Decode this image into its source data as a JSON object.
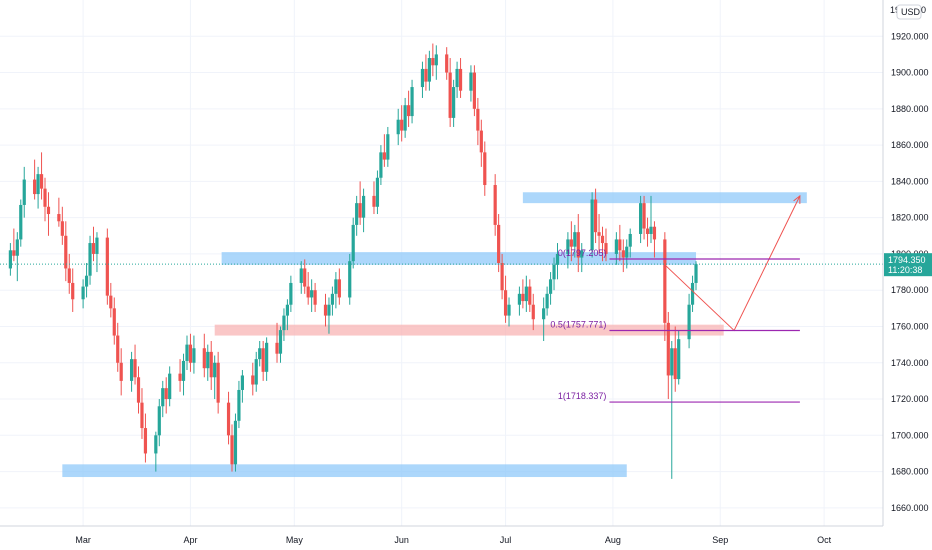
{
  "chart_data": {
    "type": "candlestick",
    "currency": "USD",
    "price_axis": {
      "ticks": [
        1660,
        1680,
        1700,
        1720,
        1740,
        1760,
        1780,
        1800,
        1820,
        1840,
        1860,
        1880,
        1900,
        1920
      ],
      "tick_labels": [
        "1660.000",
        "1680.000",
        "1700.000",
        "1720.000",
        "1740.000",
        "1760.000",
        "1780.000",
        "1800.000",
        "1820.000",
        "1840.000",
        "1860.000",
        "1880.000",
        "1900.000",
        "1920.000"
      ],
      "top_label": "19",
      "top_label_suffix": "0",
      "ylim": [
        1650,
        1940
      ]
    },
    "time_axis": {
      "labels": [
        "Mar",
        "Apr",
        "May",
        "Jun",
        "Jul",
        "Aug",
        "Sep",
        "Oct"
      ],
      "label_days": [
        1,
        32,
        62,
        93,
        123,
        154,
        185,
        215
      ],
      "xlim": [
        -23,
        232
      ]
    },
    "last_price": {
      "value": 1794.35,
      "value_label": "1794.350",
      "countdown": "11:20:38",
      "color": "#26a69a"
    },
    "colors": {
      "up": "#26a69a",
      "down": "#ef5350"
    },
    "ohlc": [
      [
        1792,
        1806,
        1788,
        1802
      ],
      [
        1802,
        1814,
        1796,
        1799
      ],
      [
        1799,
        1812,
        1785,
        1808
      ],
      [
        1808,
        1830,
        1804,
        1827
      ],
      [
        1827,
        1848,
        1820,
        1841
      ],
      [
        1841,
        1852,
        1830,
        1833
      ],
      [
        1833,
        1848,
        1825,
        1844
      ],
      [
        1844,
        1856,
        1830,
        1836
      ],
      [
        1836,
        1842,
        1818,
        1826
      ],
      [
        1826,
        1834,
        1810,
        1822
      ],
      [
        1822,
        1831,
        1815,
        1818
      ],
      [
        1818,
        1826,
        1805,
        1810
      ],
      [
        1810,
        1818,
        1785,
        1792
      ],
      [
        1792,
        1800,
        1778,
        1784
      ],
      [
        1784,
        1792,
        1768,
        1775
      ],
      [
        1775,
        1786,
        1770,
        1782
      ],
      [
        1782,
        1795,
        1776,
        1788
      ],
      [
        1788,
        1810,
        1783,
        1806
      ],
      [
        1806,
        1815,
        1796,
        1800
      ],
      [
        1800,
        1812,
        1790,
        1809
      ],
      [
        1809,
        1814,
        1772,
        1777
      ],
      [
        1777,
        1784,
        1765,
        1770
      ],
      [
        1770,
        1776,
        1750,
        1755
      ],
      [
        1755,
        1762,
        1735,
        1740
      ],
      [
        1740,
        1748,
        1722,
        1730
      ],
      [
        1730,
        1746,
        1724,
        1742
      ],
      [
        1742,
        1750,
        1728,
        1732
      ],
      [
        1732,
        1738,
        1712,
        1718
      ],
      [
        1718,
        1726,
        1698,
        1704
      ],
      [
        1704,
        1712,
        1685,
        1690
      ],
      [
        1690,
        1702,
        1680,
        1700
      ],
      [
        1700,
        1720,
        1694,
        1716
      ],
      [
        1716,
        1730,
        1710,
        1726
      ],
      [
        1726,
        1732,
        1712,
        1720
      ],
      [
        1720,
        1738,
        1716,
        1734
      ],
      [
        1734,
        1742,
        1724,
        1730
      ],
      [
        1730,
        1745,
        1722,
        1741
      ],
      [
        1741,
        1755,
        1736,
        1750
      ],
      [
        1750,
        1756,
        1735,
        1740
      ],
      [
        1740,
        1755,
        1734,
        1748
      ],
      [
        1748,
        1756,
        1732,
        1737
      ],
      [
        1737,
        1750,
        1730,
        1746
      ],
      [
        1746,
        1752,
        1725,
        1732
      ],
      [
        1732,
        1744,
        1720,
        1740
      ],
      [
        1740,
        1746,
        1712,
        1718
      ],
      [
        1718,
        1724,
        1695,
        1700
      ],
      [
        1700,
        1706,
        1680,
        1684
      ],
      [
        1684,
        1712,
        1680,
        1708
      ],
      [
        1708,
        1730,
        1704,
        1725
      ],
      [
        1725,
        1736,
        1718,
        1733
      ],
      [
        1733,
        1740,
        1722,
        1728
      ],
      [
        1728,
        1746,
        1724,
        1742
      ],
      [
        1742,
        1752,
        1738,
        1748
      ],
      [
        1748,
        1752,
        1730,
        1735
      ],
      [
        1735,
        1754,
        1730,
        1751
      ],
      [
        1751,
        1762,
        1740,
        1745
      ],
      [
        1745,
        1760,
        1740,
        1758
      ],
      [
        1758,
        1770,
        1752,
        1766
      ],
      [
        1766,
        1775,
        1758,
        1772
      ],
      [
        1772,
        1788,
        1768,
        1784
      ],
      [
        1784,
        1796,
        1778,
        1792
      ],
      [
        1792,
        1797,
        1778,
        1782
      ],
      [
        1782,
        1790,
        1772,
        1776
      ],
      [
        1776,
        1786,
        1768,
        1780
      ],
      [
        1780,
        1784,
        1768,
        1772
      ],
      [
        1772,
        1778,
        1760,
        1766
      ],
      [
        1766,
        1776,
        1756,
        1772
      ],
      [
        1772,
        1782,
        1766,
        1778
      ],
      [
        1778,
        1790,
        1770,
        1786
      ],
      [
        1786,
        1792,
        1772,
        1776
      ],
      [
        1776,
        1800,
        1772,
        1796
      ],
      [
        1796,
        1820,
        1792,
        1816
      ],
      [
        1816,
        1832,
        1810,
        1828
      ],
      [
        1828,
        1840,
        1816,
        1820
      ],
      [
        1820,
        1836,
        1812,
        1832
      ],
      [
        1832,
        1840,
        1822,
        1826
      ],
      [
        1826,
        1846,
        1822,
        1842
      ],
      [
        1842,
        1860,
        1838,
        1856
      ],
      [
        1856,
        1866,
        1848,
        1852
      ],
      [
        1852,
        1870,
        1848,
        1866
      ],
      [
        1866,
        1880,
        1860,
        1874
      ],
      [
        1874,
        1882,
        1862,
        1868
      ],
      [
        1868,
        1886,
        1864,
        1882
      ],
      [
        1882,
        1890,
        1870,
        1876
      ],
      [
        1876,
        1896,
        1872,
        1892
      ],
      [
        1892,
        1906,
        1886,
        1902
      ],
      [
        1902,
        1910,
        1890,
        1895
      ],
      [
        1895,
        1912,
        1890,
        1908
      ],
      [
        1908,
        1916,
        1898,
        1904
      ],
      [
        1904,
        1915,
        1896,
        1910
      ],
      [
        1910,
        1914,
        1896,
        1900
      ],
      [
        1900,
        1908,
        1870,
        1875
      ],
      [
        1875,
        1896,
        1870,
        1892
      ],
      [
        1892,
        1906,
        1886,
        1902
      ],
      [
        1902,
        1908,
        1886,
        1890
      ],
      [
        1890,
        1904,
        1884,
        1900
      ],
      [
        1900,
        1904,
        1876,
        1880
      ],
      [
        1880,
        1886,
        1860,
        1868
      ],
      [
        1868,
        1874,
        1848,
        1856
      ],
      [
        1856,
        1862,
        1832,
        1838
      ],
      [
        1838,
        1844,
        1810,
        1816
      ],
      [
        1816,
        1822,
        1790,
        1795
      ],
      [
        1795,
        1800,
        1775,
        1780
      ],
      [
        1780,
        1788,
        1762,
        1766
      ],
      [
        1766,
        1776,
        1760,
        1772
      ],
      [
        1772,
        1782,
        1766,
        1778
      ],
      [
        1778,
        1786,
        1770,
        1774
      ],
      [
        1774,
        1788,
        1768,
        1782
      ],
      [
        1782,
        1786,
        1768,
        1772
      ],
      [
        1772,
        1778,
        1758,
        1764
      ],
      [
        1764,
        1776,
        1752,
        1770
      ],
      [
        1770,
        1782,
        1766,
        1778
      ],
      [
        1778,
        1790,
        1772,
        1786
      ],
      [
        1786,
        1798,
        1780,
        1794
      ],
      [
        1794,
        1806,
        1786,
        1800
      ],
      [
        1800,
        1812,
        1792,
        1808
      ],
      [
        1808,
        1818,
        1796,
        1804
      ],
      [
        1804,
        1816,
        1798,
        1812
      ],
      [
        1812,
        1822,
        1790,
        1798
      ],
      [
        1798,
        1806,
        1790,
        1802
      ],
      [
        1802,
        1834,
        1798,
        1830
      ],
      [
        1830,
        1836,
        1806,
        1812
      ],
      [
        1812,
        1822,
        1800,
        1810
      ],
      [
        1810,
        1815,
        1796,
        1806
      ],
      [
        1806,
        1814,
        1796,
        1800
      ],
      [
        1800,
        1812,
        1794,
        1808
      ],
      [
        1808,
        1816,
        1796,
        1802
      ],
      [
        1802,
        1808,
        1790,
        1798
      ],
      [
        1798,
        1808,
        1792,
        1804
      ],
      [
        1804,
        1814,
        1798,
        1811
      ],
      [
        1811,
        1832,
        1806,
        1828
      ],
      [
        1828,
        1832,
        1808,
        1814
      ],
      [
        1814,
        1820,
        1804,
        1811
      ],
      [
        1811,
        1832,
        1806,
        1815
      ],
      [
        1815,
        1818,
        1798,
        1808
      ],
      [
        1808,
        1812,
        1752,
        1762
      ],
      [
        1762,
        1768,
        1720,
        1733
      ],
      [
        1733,
        1752,
        1676,
        1748
      ],
      [
        1748,
        1760,
        1724,
        1731
      ],
      [
        1731,
        1758,
        1728,
        1753
      ],
      [
        1753,
        1778,
        1748,
        1772
      ],
      [
        1772,
        1788,
        1768,
        1784
      ],
      [
        1784,
        1796,
        1780,
        1794.35
      ]
    ],
    "trend_projection": [
      {
        "day": 169,
        "price": 1794
      },
      {
        "day": 189,
        "price": 1757.8
      },
      {
        "day": 208,
        "price": 1832
      }
    ],
    "fibonacci": {
      "start_day": 153,
      "end_day": 208,
      "levels": [
        {
          "ratio": "0",
          "price": 1797.205,
          "label": "0(1797.205)"
        },
        {
          "ratio": "0.5",
          "price": 1757.771,
          "label": "0.5(1757.771)"
        },
        {
          "ratio": "1",
          "price": 1718.337,
          "label": "1(1718.337)"
        }
      ],
      "color": "#9c27b0"
    },
    "zones": [
      {
        "kind": "resistance",
        "day_start": 128,
        "day_end": 210,
        "price_low": 1828,
        "price_high": 1834,
        "color": "#90caf9"
      },
      {
        "kind": "support-resistance",
        "day_start": 41,
        "day_end": 178,
        "price_low": 1794,
        "price_high": 1801,
        "color": "#90caf9"
      },
      {
        "kind": "demand",
        "day_start": 39,
        "day_end": 186,
        "price_low": 1755,
        "price_high": 1761,
        "color": "#f8b4b4"
      },
      {
        "kind": "support",
        "day_start": -5,
        "day_end": 158,
        "price_low": 1677,
        "price_high": 1684,
        "color": "#90caf9"
      }
    ],
    "arrow_color": "#ef5350"
  }
}
